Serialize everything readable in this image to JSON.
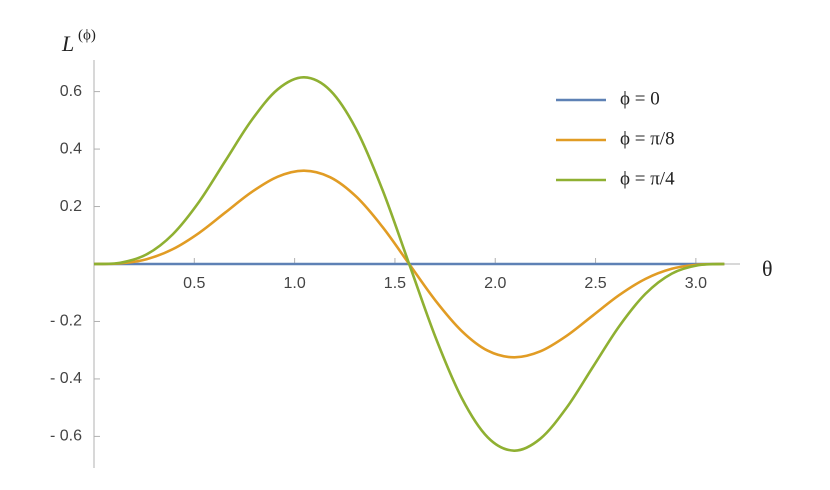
{
  "chart_data": {
    "type": "line",
    "x_label": "θ",
    "y_label": {
      "base": "L",
      "superscript": "(ϕ)"
    },
    "x": [
      0,
      0.131,
      0.262,
      0.393,
      0.524,
      0.654,
      0.785,
      0.916,
      1.047,
      1.178,
      1.309,
      1.44,
      1.571,
      1.702,
      1.833,
      1.963,
      2.094,
      2.225,
      2.356,
      2.487,
      2.618,
      2.749,
      2.88,
      3.011,
      3.142
    ],
    "series": [
      {
        "name": "ϕ =  0",
        "color": "#5e81b5",
        "values": [
          0,
          0,
          0,
          0,
          0,
          0,
          0,
          0,
          0,
          0,
          0,
          0,
          0,
          0,
          0,
          0,
          0,
          0,
          0,
          0,
          0,
          0,
          0,
          0,
          0
        ]
      },
      {
        "name": "ϕ = π/8",
        "color": "#e19c24",
        "values": [
          0,
          0.0022,
          0.0167,
          0.0518,
          0.1083,
          0.179,
          0.25,
          0.304,
          0.3248,
          0.3018,
          0.2332,
          0.1272,
          0,
          -0.1272,
          -0.2332,
          -0.3018,
          -0.3248,
          -0.304,
          -0.25,
          -0.179,
          -0.1083,
          -0.0518,
          -0.0167,
          -0.0022,
          0
        ]
      },
      {
        "name": "ϕ = π/4",
        "color": "#8fb032",
        "values": [
          0,
          0.0044,
          0.0334,
          0.1036,
          0.2166,
          0.358,
          0.5,
          0.608,
          0.6496,
          0.6036,
          0.4664,
          0.2544,
          0,
          -0.2544,
          -0.4664,
          -0.6036,
          -0.6496,
          -0.608,
          -0.5,
          -0.358,
          -0.2166,
          -0.1036,
          -0.0334,
          -0.0044,
          0
        ]
      }
    ],
    "xlim": [
      0,
      3.22
    ],
    "ylim": [
      -0.71,
      0.71
    ],
    "xticks": [
      0.5,
      {
        "value": 1,
        "label": "1.0"
      },
      1.5,
      {
        "value": 2,
        "label": "2.0"
      },
      2.5,
      {
        "value": 3,
        "label": "3.0"
      }
    ],
    "yticks": [
      {
        "value": -0.6,
        "label": "- 0.6"
      },
      {
        "value": -0.4,
        "label": "- 0.4"
      },
      {
        "value": -0.2,
        "label": "- 0.2"
      },
      0.2,
      0.4,
      0.6
    ],
    "grid": false,
    "legend": "top-right"
  }
}
